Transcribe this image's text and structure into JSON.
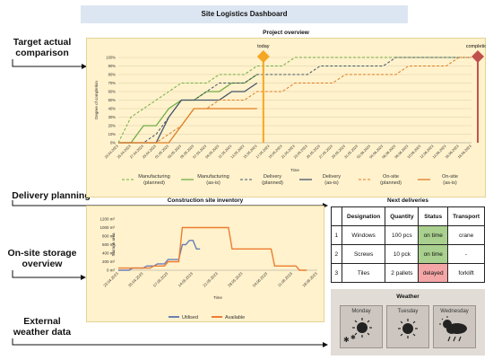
{
  "header": {
    "title": "Site Logistics Dashboard"
  },
  "side_labels": {
    "target": [
      "Target actual",
      "comparison"
    ],
    "delivery": "Delivery planning",
    "storage": [
      "On-site storage",
      "overview"
    ],
    "weather": [
      "External",
      "weather data"
    ]
  },
  "project": {
    "title": "Project overview",
    "ylabel": "Degree of completion",
    "xlabel": "Time",
    "today_label": "today",
    "completion_label": "completion",
    "y_ticks": [
      "0%",
      "10%",
      "20%",
      "30%",
      "40%",
      "50%",
      "60%",
      "70%",
      "80%",
      "90%",
      "100%"
    ],
    "x_ticks": [
      "23.04.2023",
      "25.04.2023",
      "27.04.2023",
      "29.04.2023",
      "01.05.2023",
      "03.05.2023",
      "05.05.2023",
      "07.05.2023",
      "09.05.2023",
      "11.05.2023",
      "13.05.2023",
      "15.05.2023",
      "17.05.2023",
      "19.05.2023",
      "21.05.2023",
      "23.05.2023",
      "25.05.2023",
      "27.05.2023",
      "29.05.2023",
      "31.05.2023",
      "02.06.2023",
      "04.06.2023",
      "06.06.2023",
      "08.06.2023",
      "10.06.2023",
      "12.06.2023",
      "14.06.2023",
      "16.06.2023",
      "18.06.2023"
    ],
    "colors": {
      "manufacturing": "#70ad47",
      "delivery": "#44546a",
      "onsite": "#e07b24",
      "today": "#f5a623",
      "completion": "#c0504d"
    },
    "legend": [
      {
        "label": "Manufacturing\n(planned)",
        "series": "mfg_planned"
      },
      {
        "label": "Manufacturing\n(as-is)",
        "series": "mfg_asis"
      },
      {
        "label": "Delivery\n(planned)",
        "series": "del_planned"
      },
      {
        "label": "Delivery\n(as-is)",
        "series": "del_asis"
      },
      {
        "label": "On-site\n(planned)",
        "series": "ons_planned"
      },
      {
        "label": "On-site\n(as-is)",
        "series": "ons_asis"
      }
    ]
  },
  "inventory": {
    "title": "Construction site inventory",
    "ylabel": "Storage area",
    "xlabel": "Time",
    "y_ticks": [
      "0 m²",
      "200 m²",
      "400 m²",
      "600 m²",
      "800 m²",
      "1000 m²",
      "1200 m²"
    ],
    "x_ticks": [
      "23.04.2023",
      "30.04.2023",
      "07.05.2023",
      "14.05.2023",
      "21.05.2023",
      "28.05.2023",
      "04.06.2023",
      "11.06.2023",
      "18.06.2023"
    ],
    "legend_utilised": "Utilised",
    "legend_available": "Available",
    "colors": {
      "utilised": "#6b7fb8",
      "available": "#ed7d31"
    }
  },
  "deliveries": {
    "title": "Next deliveries",
    "headers": [
      "",
      "Designation",
      "Quantity",
      "Status",
      "Transport"
    ],
    "rows": [
      {
        "no": "1",
        "designation": "Windows",
        "quantity": "100 pcs",
        "status": "on time",
        "transport": "crane"
      },
      {
        "no": "2",
        "designation": "Screws",
        "quantity": "10 pck",
        "status": "on time",
        "transport": "-"
      },
      {
        "no": "3",
        "designation": "Tiles",
        "quantity": "2 pallets",
        "status": "delayed",
        "transport": "forklift"
      }
    ]
  },
  "weather": {
    "title": "Weather",
    "days": [
      {
        "name": "Monday",
        "icon": "sun-snow-icon"
      },
      {
        "name": "Tuesday",
        "icon": "sun-icon"
      },
      {
        "name": "Wednesday",
        "icon": "cloud-rain-icon"
      }
    ]
  },
  "chart_data": [
    {
      "type": "line",
      "title": "Project overview",
      "xlabel": "Time",
      "ylabel": "Degree of completion",
      "x": [
        "23.04.2023",
        "25.04.2023",
        "27.04.2023",
        "29.04.2023",
        "01.05.2023",
        "03.05.2023",
        "05.05.2023",
        "07.05.2023",
        "09.05.2023",
        "11.05.2023",
        "13.05.2023",
        "15.05.2023",
        "17.05.2023",
        "19.05.2023",
        "21.05.2023",
        "23.05.2023",
        "25.05.2023",
        "27.05.2023",
        "29.05.2023",
        "31.05.2023",
        "02.06.2023",
        "04.06.2023",
        "06.06.2023",
        "08.06.2023",
        "10.06.2023",
        "12.06.2023",
        "14.06.2023",
        "16.06.2023",
        "18.06.2023"
      ],
      "ylim": [
        0,
        100
      ],
      "series": [
        {
          "name": "Manufacturing (planned)",
          "id": "mfg_planned",
          "dashed": true,
          "values": [
            0,
            30,
            40,
            50,
            60,
            70,
            70,
            70,
            80,
            80,
            80,
            90,
            90,
            90,
            100,
            100,
            100,
            100,
            100,
            100,
            100,
            100,
            100,
            100,
            100,
            100,
            100,
            100,
            100
          ]
        },
        {
          "name": "Manufacturing (as-is)",
          "id": "mfg_asis",
          "dashed": false,
          "values": [
            0,
            0,
            20,
            20,
            40,
            50,
            50,
            60,
            60,
            70,
            70,
            80,
            null,
            null,
            null,
            null,
            null,
            null,
            null,
            null,
            null,
            null,
            null,
            null,
            null,
            null,
            null,
            null,
            null
          ]
        },
        {
          "name": "Delivery (planned)",
          "id": "del_planned",
          "dashed": true,
          "values": [
            0,
            0,
            0,
            10,
            30,
            50,
            50,
            60,
            70,
            70,
            70,
            80,
            80,
            80,
            80,
            80,
            90,
            90,
            90,
            90,
            90,
            90,
            100,
            100,
            100,
            100,
            100,
            100,
            100
          ]
        },
        {
          "name": "Delivery (as-is)",
          "id": "del_asis",
          "dashed": false,
          "values": [
            0,
            0,
            0,
            0,
            30,
            50,
            50,
            50,
            50,
            60,
            60,
            70,
            null,
            null,
            null,
            null,
            null,
            null,
            null,
            null,
            null,
            null,
            null,
            null,
            null,
            null,
            null,
            null,
            null
          ]
        },
        {
          "name": "On-site (planned)",
          "id": "ons_planned",
          "dashed": true,
          "values": [
            0,
            0,
            0,
            0,
            10,
            20,
            40,
            40,
            50,
            50,
            50,
            60,
            60,
            60,
            70,
            70,
            70,
            70,
            80,
            80,
            80,
            80,
            80,
            90,
            90,
            90,
            90,
            100,
            100
          ]
        },
        {
          "name": "On-site (as-is)",
          "id": "ons_asis",
          "dashed": false,
          "values": [
            0,
            0,
            0,
            0,
            0,
            20,
            40,
            40,
            40,
            40,
            40,
            40,
            null,
            null,
            null,
            null,
            null,
            null,
            null,
            null,
            null,
            null,
            null,
            null,
            null,
            null,
            null,
            null,
            null
          ]
        }
      ],
      "markers": [
        {
          "label": "today",
          "x": "16.05.2023"
        },
        {
          "label": "completion",
          "x": "19.06.2023"
        }
      ]
    },
    {
      "type": "line",
      "title": "Construction site inventory",
      "xlabel": "Time",
      "ylabel": "Storage area",
      "ylim": [
        0,
        1200
      ],
      "x_ticks": [
        "23.04.2023",
        "30.04.2023",
        "07.05.2023",
        "14.05.2023",
        "21.05.2023",
        "28.05.2023",
        "04.06.2023",
        "11.06.2023",
        "18.06.2023"
      ],
      "series": [
        {
          "name": "Utilised",
          "id": "utilised",
          "points": [
            [
              0,
              0
            ],
            [
              3,
              0
            ],
            [
              4,
              50
            ],
            [
              7,
              50
            ],
            [
              8,
              100
            ],
            [
              10,
              100
            ],
            [
              11,
              150
            ],
            [
              13,
              150
            ],
            [
              14,
              250
            ],
            [
              17,
              250
            ],
            [
              18,
              600
            ],
            [
              19,
              600
            ],
            [
              20,
              700
            ],
            [
              21,
              700
            ],
            [
              22,
              500
            ],
            [
              23,
              500
            ]
          ]
        },
        {
          "name": "Available",
          "id": "available",
          "points": [
            [
              0,
              50
            ],
            [
              9,
              50
            ],
            [
              10,
              100
            ],
            [
              13,
              100
            ],
            [
              14,
              200
            ],
            [
              17,
              200
            ],
            [
              18,
              1000
            ],
            [
              31,
              1000
            ],
            [
              32,
              500
            ],
            [
              43,
              500
            ],
            [
              44,
              100
            ],
            [
              50,
              100
            ],
            [
              51,
              0
            ],
            [
              53,
              0
            ]
          ]
        }
      ],
      "x_unit_days_from": "23.04.2023"
    }
  ]
}
